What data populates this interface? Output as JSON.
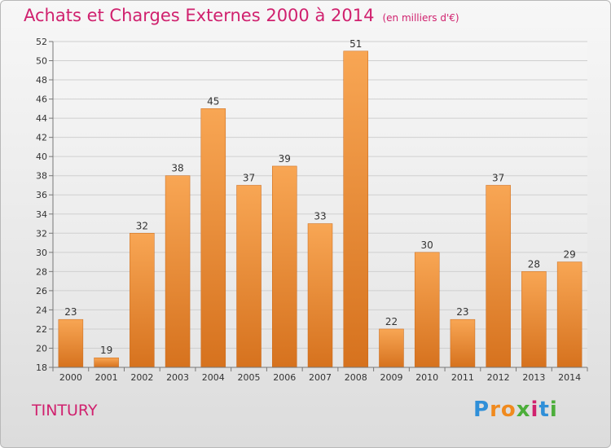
{
  "header": {
    "title": "Achats et Charges Externes 2000 à 2014",
    "subtitle": "(en milliers d'€)"
  },
  "footer": {
    "commune": "TINTURY",
    "logo_letters": [
      "P",
      "r",
      "o",
      "x",
      "i",
      "t",
      "i"
    ],
    "logo_colors": [
      "#2f8fd8",
      "#f08a1e",
      "#f08a1e",
      "#4cae3a",
      "#d0216e",
      "#2f8fd8",
      "#4cae3a"
    ]
  },
  "colors": {
    "bar_top": "#f8a654",
    "bar_bottom": "#d6721e",
    "title": "#d0216e"
  },
  "chart_data": {
    "type": "bar",
    "title": "Achats et Charges Externes 2000 à 2014",
    "categories": [
      "2000",
      "2001",
      "2002",
      "2003",
      "2004",
      "2005",
      "2006",
      "2007",
      "2008",
      "2009",
      "2010",
      "2011",
      "2012",
      "2013",
      "2014"
    ],
    "values": [
      23,
      19,
      32,
      38,
      45,
      37,
      39,
      33,
      51,
      22,
      30,
      23,
      37,
      28,
      29
    ],
    "ylim": [
      18,
      52
    ],
    "yticks": [
      18,
      20,
      22,
      24,
      26,
      28,
      30,
      32,
      34,
      36,
      38,
      40,
      42,
      44,
      46,
      48,
      50,
      52
    ],
    "grid": true,
    "data_labels": true
  }
}
